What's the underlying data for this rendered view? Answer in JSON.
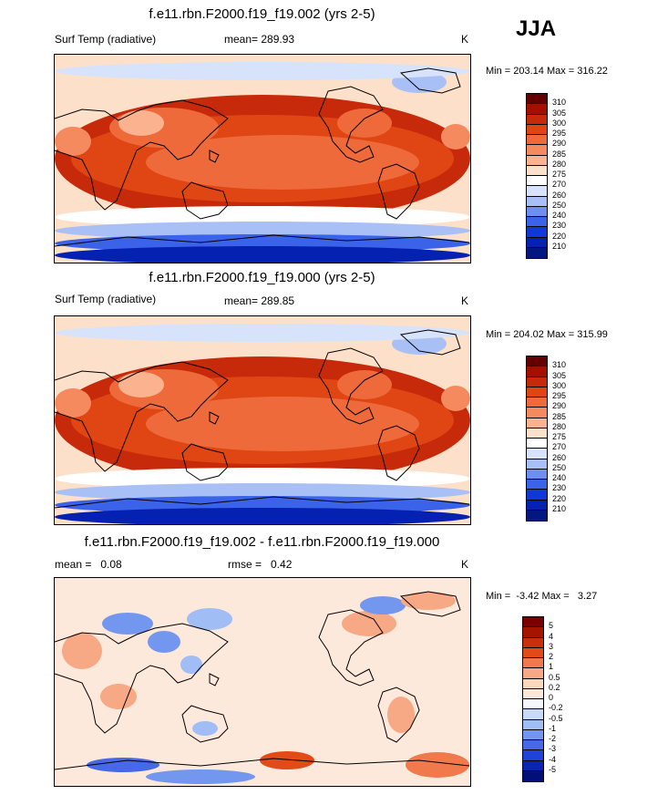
{
  "season": "JJA",
  "panels": [
    {
      "title": "f.e11.rbn.F2000.f19_f19.002 (yrs 2-5)",
      "left": "Surf Temp (radiative)",
      "mid": "mean= 289.93",
      "unit": "K",
      "minmax": "Min = 203.14 Max = 316.22",
      "kind": "abs",
      "labels": [
        "310",
        "305",
        "300",
        "295",
        "290",
        "285",
        "280",
        "275",
        "270",
        "260",
        "250",
        "240",
        "230",
        "220",
        "210"
      ],
      "colors": [
        "#650000",
        "#a50f02",
        "#c72a0a",
        "#e04514",
        "#ee6a3a",
        "#f58a5e",
        "#fbb28f",
        "#fde0c9",
        "#ffffff",
        "#d7e3fb",
        "#a8c0f5",
        "#6d8ff0",
        "#3a63ea",
        "#1037d8",
        "#0521b1",
        "#031780"
      ]
    },
    {
      "title": "f.e11.rbn.F2000.f19_f19.000 (yrs 2-5)",
      "left": "Surf Temp (radiative)",
      "mid": "mean= 289.85",
      "unit": "K",
      "minmax": "Min = 204.02 Max = 315.99",
      "kind": "abs",
      "labels": [
        "310",
        "305",
        "300",
        "295",
        "290",
        "285",
        "280",
        "275",
        "270",
        "260",
        "250",
        "240",
        "230",
        "220",
        "210"
      ],
      "colors": [
        "#650000",
        "#a50f02",
        "#c72a0a",
        "#e04514",
        "#ee6a3a",
        "#f58a5e",
        "#fbb28f",
        "#fde0c9",
        "#ffffff",
        "#d7e3fb",
        "#a8c0f5",
        "#6d8ff0",
        "#3a63ea",
        "#1037d8",
        "#0521b1",
        "#031780"
      ]
    },
    {
      "title": "f.e11.rbn.F2000.f19_f19.002 - f.e11.rbn.F2000.f19_f19.000",
      "left": "mean =   0.08",
      "mid": "rmse =   0.42",
      "unit": "K",
      "minmax": "Min =  -3.42 Max =   3.27",
      "kind": "diff",
      "labels": [
        "5",
        "4",
        "3",
        "2",
        "1",
        "0.5",
        "0.2",
        "0",
        "-0.2",
        "-0.5",
        "-1",
        "-2",
        "-3",
        "-4",
        "-5"
      ],
      "colors": [
        "#7a0000",
        "#a51400",
        "#c8300a",
        "#e24a18",
        "#f07a4c",
        "#f7a985",
        "#fcd7bd",
        "#fde9dc",
        "#f4f7ff",
        "#c9d9fb",
        "#a0bdf5",
        "#7396ef",
        "#4769e6",
        "#1f42d8",
        "#0a25b5",
        "#020f78"
      ]
    }
  ]
}
